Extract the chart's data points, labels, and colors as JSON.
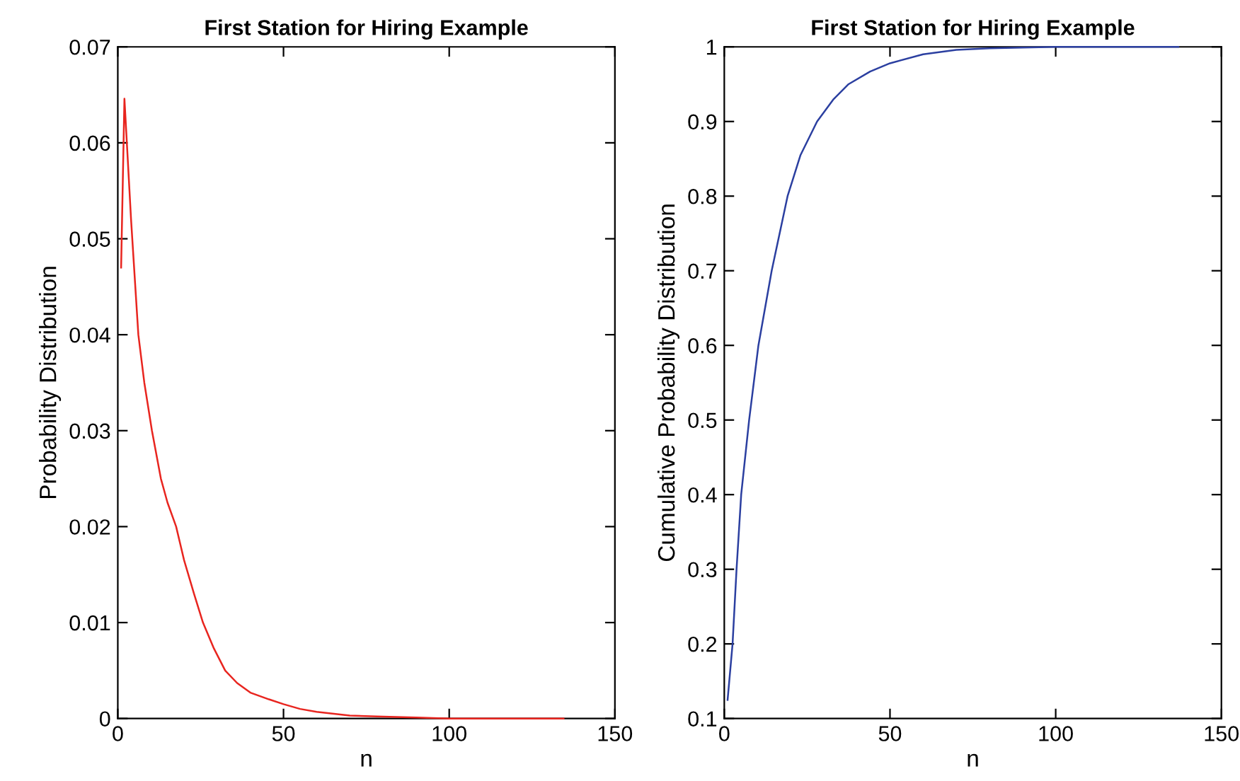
{
  "chart_data": [
    {
      "type": "line",
      "title": "First Station for Hiring Example",
      "xlabel": "n",
      "ylabel": "Probability Distribution",
      "xlim": [
        0,
        150
      ],
      "xticks": [
        0,
        50,
        100,
        150
      ],
      "ylim": [
        0,
        0.07
      ],
      "yticks": [
        0,
        0.01,
        0.02,
        0.03,
        0.04,
        0.05,
        0.06,
        0.07
      ],
      "grid": false,
      "legend": false,
      "series": [
        {
          "color": "#e8251f",
          "x": [
            1,
            2,
            4,
            6.2,
            8,
            10.3,
            13,
            15,
            17.6,
            20,
            23,
            25.7,
            29,
            32.4,
            36,
            40,
            45.6,
            50,
            55,
            60,
            70,
            80,
            90,
            100,
            115,
            134.5
          ],
          "values": [
            0.047,
            0.0646,
            0.052,
            0.04,
            0.035,
            0.03,
            0.025,
            0.0225,
            0.02,
            0.0165,
            0.013,
            0.01,
            0.0073,
            0.005,
            0.0037,
            0.0027,
            0.002,
            0.0015,
            0.001,
            0.0007,
            0.0003,
            0.0002,
            0.0001,
            0.0,
            0.0,
            0.0
          ]
        }
      ]
    },
    {
      "type": "line",
      "title": "First Station for Hiring Example",
      "xlabel": "n",
      "ylabel": "Cumulative Probability Distribution",
      "xlim": [
        0,
        150
      ],
      "xticks": [
        0,
        50,
        100,
        150
      ],
      "ylim": [
        0.1,
        1
      ],
      "yticks": [
        0.1,
        0.2,
        0.3,
        0.4,
        0.5,
        0.6,
        0.7,
        0.8,
        0.9,
        1
      ],
      "grid": false,
      "legend": false,
      "series": [
        {
          "color": "#2b3fa0",
          "x": [
            1,
            2.5,
            3.7,
            5.1,
            7.5,
            10.3,
            14.3,
            19.1,
            23,
            28,
            33,
            37.5,
            44,
            50,
            60,
            70,
            80,
            100,
            120,
            137
          ],
          "values": [
            0.125,
            0.2,
            0.3,
            0.4,
            0.5,
            0.6,
            0.7,
            0.8,
            0.855,
            0.9,
            0.93,
            0.95,
            0.967,
            0.978,
            0.99,
            0.996,
            0.998,
            1.0,
            1.0,
            1.0
          ]
        }
      ]
    }
  ]
}
